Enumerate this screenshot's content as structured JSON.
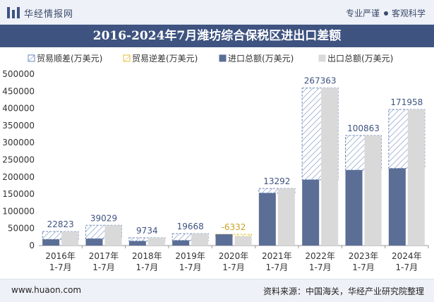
{
  "header": {
    "brand": "华经情报网",
    "slogan_left": "专业严谨",
    "slogan_right": "客观科学"
  },
  "title": "2016-2024年7月潍坊综合保税区进出口差额",
  "footer": {
    "site": "www.huaon.com",
    "source": "资料来源：中国海关，华经产业研究院整理"
  },
  "colors": {
    "import": "#5a6e96",
    "export": "#d9d9d9",
    "surplus_stroke": "#6f89b8",
    "deficit_stroke": "#e3c23a",
    "surplus_label": "#3e5380",
    "deficit_label": "#c9a227",
    "header_bg": "#3e5380"
  },
  "chart_data": {
    "type": "bar",
    "categories": [
      "2016年 1-7月",
      "2017年 1-7月",
      "2018年 1-7月",
      "2019年 1-7月",
      "2020年 1-7月",
      "2021年 1-7月",
      "2022年 1-7月",
      "2023年 1-7月",
      "2024年 1-7月"
    ],
    "legend": [
      "贸易顺差(万美元)",
      "贸易逆差(万美元)",
      "进口总额(万美元)",
      "出口总额(万美元)"
    ],
    "series": [
      {
        "name": "进口总额(万美元)",
        "values": [
          18000,
          20000,
          13000,
          15000,
          33000,
          153000,
          192000,
          220000,
          225000
        ]
      },
      {
        "name": "出口总额(万美元)",
        "values": [
          40823,
          59029,
          22734,
          34668,
          26668,
          166292,
          459363,
          320863,
          396958
        ]
      }
    ],
    "balance": [
      {
        "value": 22823,
        "label": "22823",
        "kind": "surplus"
      },
      {
        "value": 39029,
        "label": "39029",
        "kind": "surplus"
      },
      {
        "value": 9734,
        "label": "9734",
        "kind": "surplus"
      },
      {
        "value": 19668,
        "label": "19668",
        "kind": "surplus"
      },
      {
        "value": -6332,
        "label": "-6332",
        "kind": "deficit"
      },
      {
        "value": 13292,
        "label": "13292",
        "kind": "surplus"
      },
      {
        "value": 267363,
        "label": "267363",
        "kind": "surplus"
      },
      {
        "value": 100863,
        "label": "100863",
        "kind": "surplus"
      },
      {
        "value": 171958,
        "label": "171958",
        "kind": "surplus"
      }
    ],
    "ylim": [
      0,
      500000
    ],
    "yticks": [
      "0",
      "50000",
      "100000",
      "150000",
      "200000",
      "250000",
      "300000",
      "350000",
      "400000",
      "450000",
      "500000"
    ],
    "grid": false,
    "legend_position": "top"
  }
}
